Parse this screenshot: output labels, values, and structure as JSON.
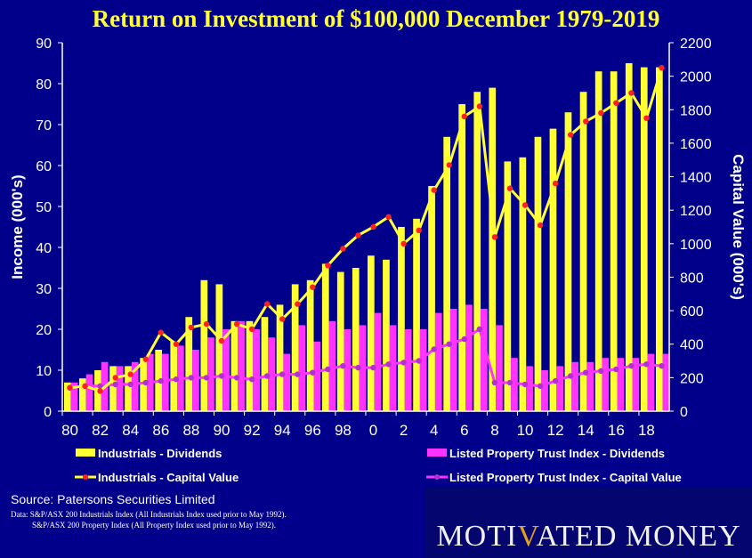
{
  "title": "Return on Investment of  $100,000 December 1979-2019",
  "source": "Source: Patersons Securities Limited",
  "notes": [
    "Data: S&P/ASX 200 Industrials Index (All Industrials Index used prior to May 1992).",
    "S&P/ASX 200 Property Index (All Property Index used prior to May 1992)."
  ],
  "logo": {
    "part1": "MOTI",
    "v": "V",
    "part2": "ATED",
    "part3": "MONEY"
  },
  "colors": {
    "background": "#00008b",
    "industrials": "#ffff33",
    "property": "#ff33ff",
    "marker": "#ff2020",
    "title": "#ffff33"
  },
  "chart_data": {
    "type": "bar",
    "title": "Return on Investment of  $100,000 December 1979-2019",
    "xlabel": "",
    "ylabel": "Income (000's)",
    "y2label": "Capital Value (000's)",
    "ylim": [
      0,
      90
    ],
    "y2lim": [
      0,
      2200
    ],
    "yticks": [
      0,
      10,
      20,
      30,
      40,
      50,
      60,
      70,
      80,
      90
    ],
    "y2ticks": [
      0,
      200,
      400,
      600,
      800,
      1000,
      1200,
      1400,
      1600,
      1800,
      2000,
      2200
    ],
    "xticklabels": [
      "80",
      "82",
      "84",
      "86",
      "88",
      "90",
      "92",
      "94",
      "96",
      "98",
      "0",
      "2",
      "4",
      "6",
      "8",
      "10",
      "12",
      "14",
      "16",
      "18"
    ],
    "categories": [
      "1980",
      "1981",
      "1982",
      "1983",
      "1984",
      "1985",
      "1986",
      "1987",
      "1988",
      "1989",
      "1990",
      "1991",
      "1992",
      "1993",
      "1994",
      "1995",
      "1996",
      "1997",
      "1998",
      "1999",
      "2000",
      "2001",
      "2002",
      "2003",
      "2004",
      "2005",
      "2006",
      "2007",
      "2008",
      "2009",
      "2010",
      "2011",
      "2012",
      "2013",
      "2014",
      "2015",
      "2016",
      "2017",
      "2018",
      "2019"
    ],
    "series": [
      {
        "name": "Industrials - Dividends",
        "kind": "bar",
        "axis": "left",
        "color": "#ffff33",
        "values": [
          7,
          8,
          10,
          11,
          11,
          13,
          15,
          17,
          23,
          32,
          31,
          22,
          22,
          23,
          26,
          31,
          32,
          36,
          34,
          35,
          38,
          37,
          45,
          47,
          55,
          67,
          75,
          78,
          79,
          61,
          62,
          67,
          69,
          73,
          78,
          83,
          83,
          85,
          84,
          84
        ]
      },
      {
        "name": "Listed Property Trust Index - Dividends",
        "kind": "bar",
        "axis": "left",
        "color": "#ff33ff",
        "values": [
          7,
          9,
          12,
          11,
          12,
          14,
          14,
          16,
          15,
          18,
          20,
          22,
          20,
          18,
          14,
          21,
          17,
          22,
          20,
          21,
          24,
          21,
          20,
          20,
          24,
          25,
          26,
          25,
          21,
          13,
          11,
          10,
          11,
          12,
          12,
          13,
          13,
          13,
          14,
          14
        ]
      },
      {
        "name": "Industrials - Capital Value",
        "kind": "line",
        "axis": "right",
        "color": "#ffff33",
        "values": [
          140,
          150,
          120,
          200,
          220,
          310,
          470,
          400,
          500,
          520,
          420,
          520,
          490,
          640,
          550,
          640,
          740,
          870,
          970,
          1050,
          1100,
          1160,
          1000,
          1080,
          1320,
          1470,
          1760,
          1820,
          1040,
          1330,
          1230,
          1110,
          1360,
          1650,
          1730,
          1780,
          1840,
          1900,
          1750,
          2050
        ]
      },
      {
        "name": "Listed Property Trust Index - Capital Value",
        "kind": "line",
        "axis": "right",
        "color": "#ff33ff",
        "values": [
          140,
          150,
          150,
          160,
          160,
          170,
          180,
          190,
          200,
          200,
          210,
          200,
          190,
          210,
          220,
          220,
          230,
          250,
          270,
          260,
          260,
          280,
          290,
          300,
          370,
          400,
          430,
          490,
          170,
          170,
          160,
          150,
          180,
          210,
          230,
          240,
          250,
          270,
          280,
          270
        ]
      }
    ],
    "legend_position": "bottom",
    "grid": false
  }
}
